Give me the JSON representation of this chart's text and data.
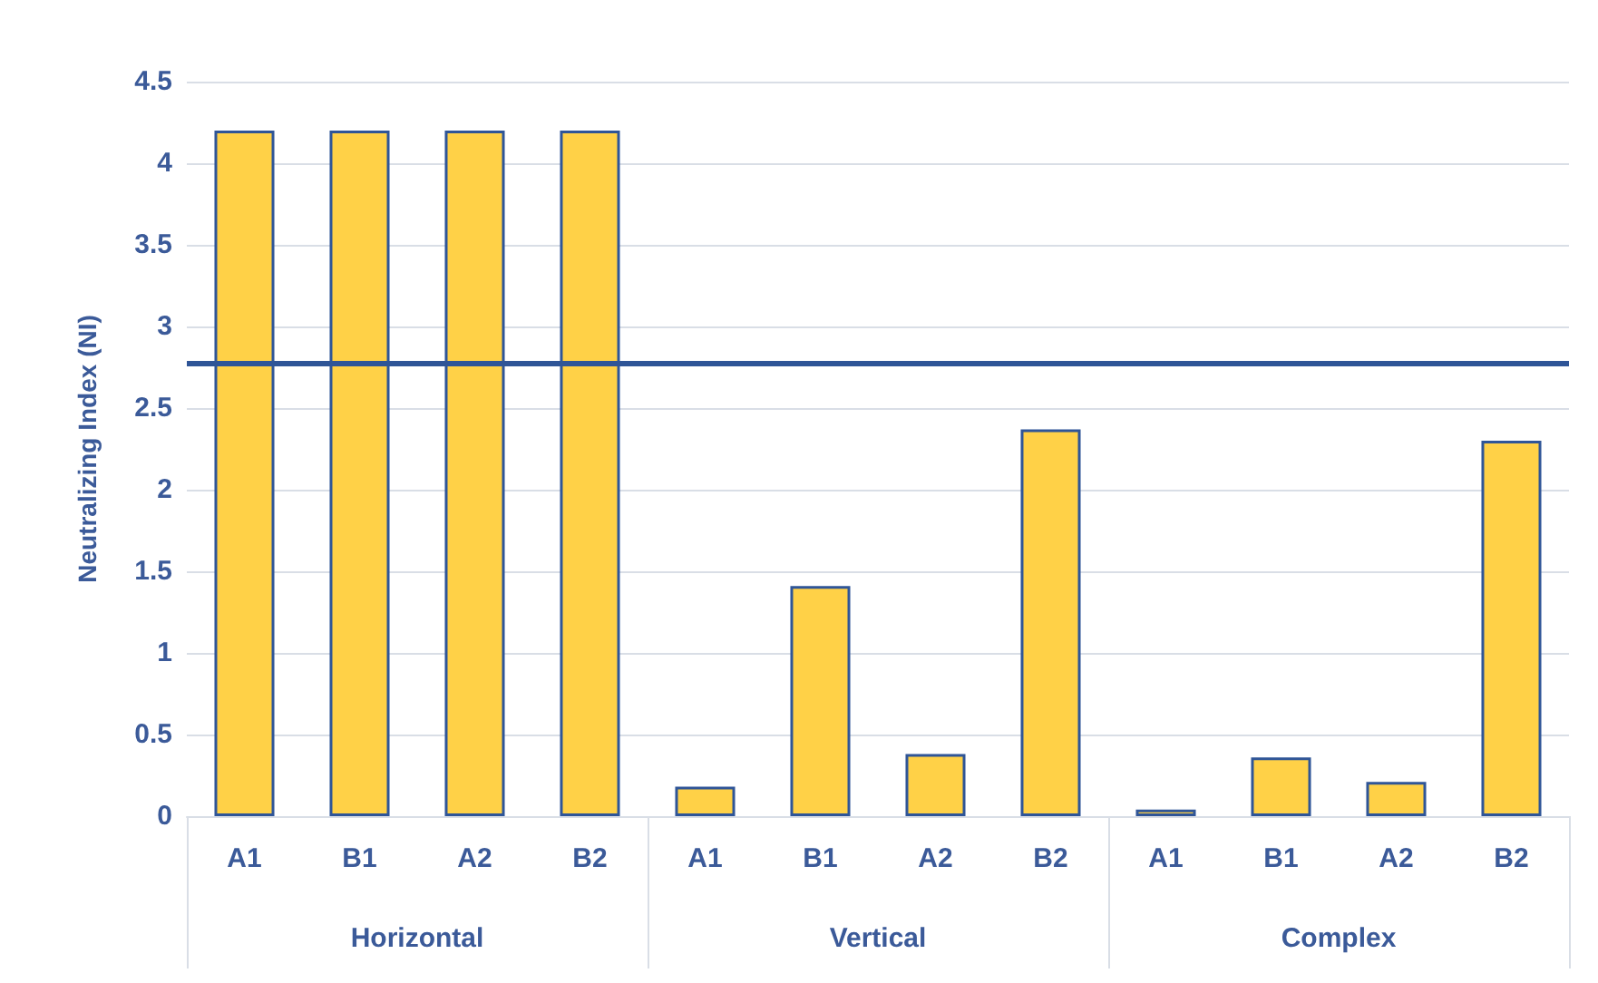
{
  "chart_data": {
    "type": "bar",
    "ylabel": "Neutralizing Index (NI)",
    "categories": [
      "A1",
      "B1",
      "A2",
      "B2",
      "A1",
      "B1",
      "A2",
      "B2",
      "A1",
      "B1",
      "A2",
      "B2"
    ],
    "annotations": [
      "Horizontal",
      "Vertical",
      "Complex"
    ],
    "series": [
      {
        "color": "#ffd147",
        "values": [
          4.2,
          4.2,
          4.2,
          4.2,
          0.18,
          1.41,
          0.38,
          2.37,
          0.04,
          0.36,
          0.21,
          2.3
        ]
      }
    ],
    "ylim": [
      0,
      4.5
    ],
    "yticks": [
      0,
      0.5,
      1,
      1.5,
      2,
      2.5,
      3,
      3.5,
      4,
      4.5
    ],
    "ref_lines": [
      {
        "axis": "y",
        "value": 2.77,
        "color": "#2f5597"
      }
    ],
    "grid": "y"
  }
}
